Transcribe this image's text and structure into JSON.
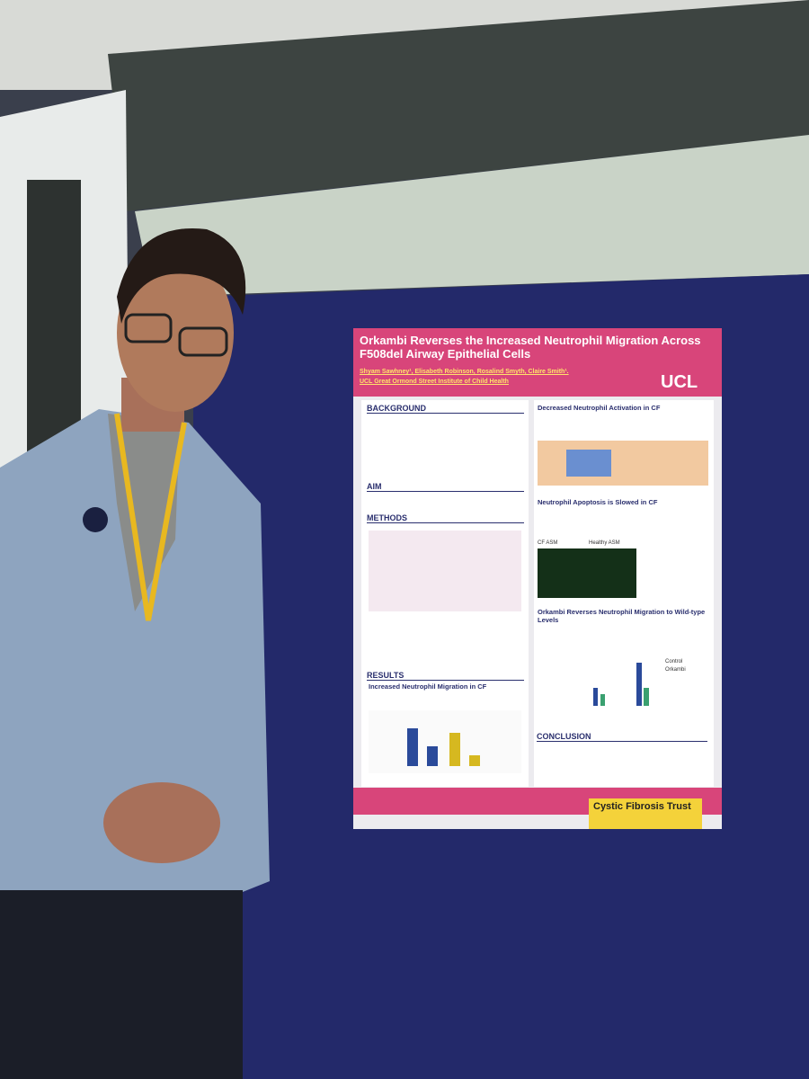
{
  "poster": {
    "title": "Orkambi Reverses the Increased Neutrophil Migration Across F508del Airway Epithelial Cells",
    "authors": "Shyam Sawhney¹, Elisabeth Robinson, Rosalind Smyth, Claire Smith¹.",
    "institution": "UCL Great Ormond Street Institute of Child Health",
    "logo": "UCL",
    "sections": [
      "BACKGROUND",
      "AIM",
      "METHODS",
      "RESULTS",
      "CONCLUSION"
    ],
    "panels": [
      "Decreased Neutrophil Activation in CF",
      "Neutrophil Apoptosis is Slowed in CF",
      "Orkambi Reverses Neutrophil Migration to Wild-type Levels",
      "Increased Neutrophil Migration in CF"
    ],
    "image_labels": [
      "CF ASM",
      "Healthy ASM"
    ],
    "legend": [
      "Control",
      "Orkambi"
    ],
    "sponsor": "Cystic Fibrosis Trust"
  }
}
